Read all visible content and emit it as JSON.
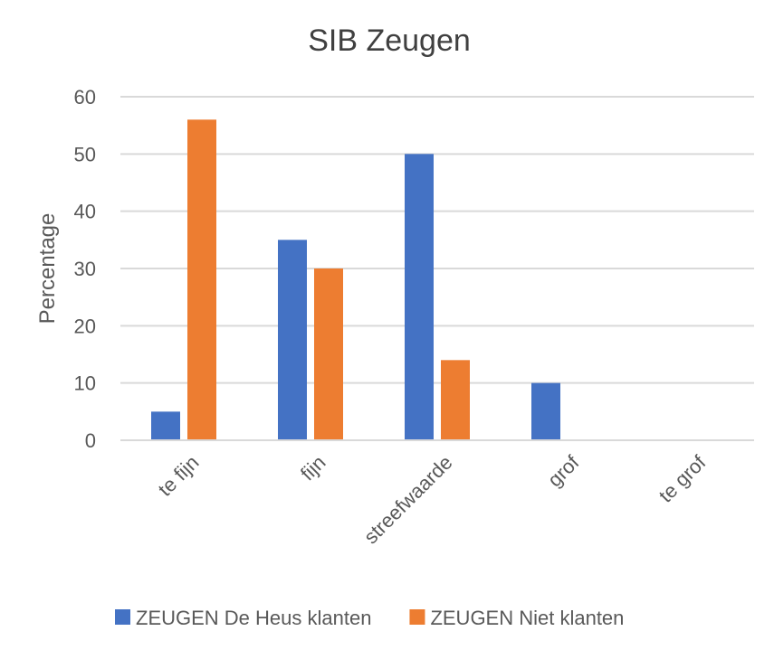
{
  "chart_data": {
    "type": "bar",
    "title": "SIB Zeugen",
    "xlabel": "",
    "ylabel": "Percentage",
    "ylim": [
      0,
      60
    ],
    "yticks": [
      0,
      10,
      20,
      30,
      40,
      50,
      60
    ],
    "grid": true,
    "legend_position": "bottom",
    "categories": [
      "te fijn",
      "fijn",
      "streefwaarde",
      "grof",
      "te grof"
    ],
    "series": [
      {
        "name": "ZEUGEN De Heus klanten",
        "color": "#4472C4",
        "values": [
          5,
          35,
          50,
          10,
          0
        ]
      },
      {
        "name": "ZEUGEN Niet klanten",
        "color": "#ED7D31",
        "values": [
          56,
          30,
          14,
          0,
          0
        ]
      }
    ]
  }
}
